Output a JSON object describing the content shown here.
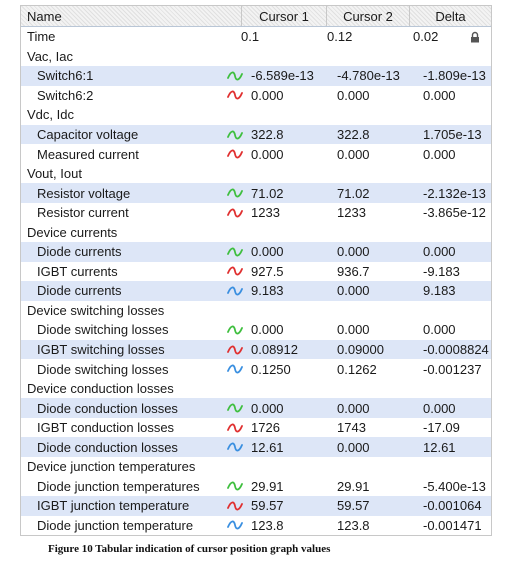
{
  "header": {
    "name": "Name",
    "cursor1": "Cursor 1",
    "cursor2": "Cursor 2",
    "delta": "Delta"
  },
  "colors": {
    "green": "#3fbf3f",
    "red": "#e03030",
    "blue": "#3a8fe0",
    "alt_row": "#dde6f7"
  },
  "rows": [
    {
      "type": "value",
      "name": "Time",
      "c1": "0.1",
      "c2": "0.12",
      "d": "0.02",
      "lock": true
    },
    {
      "type": "group",
      "name": "Vac, Iac"
    },
    {
      "type": "signal",
      "name": "Switch6:1",
      "icon": "green",
      "c1": "-6.589e-13",
      "c2": "-4.780e-13",
      "d": "-1.809e-13"
    },
    {
      "type": "signal",
      "name": "Switch6:2",
      "icon": "red",
      "c1": "0.000",
      "c2": "0.000",
      "d": "0.000"
    },
    {
      "type": "group",
      "name": "Vdc, Idc"
    },
    {
      "type": "signal",
      "name": "Capacitor voltage",
      "icon": "green",
      "c1": "322.8",
      "c2": "322.8",
      "d": "1.705e-13"
    },
    {
      "type": "signal",
      "name": "Measured current",
      "icon": "red",
      "c1": "0.000",
      "c2": "0.000",
      "d": "0.000"
    },
    {
      "type": "group",
      "name": "Vout, Iout"
    },
    {
      "type": "signal",
      "name": "Resistor voltage",
      "icon": "green",
      "c1": "71.02",
      "c2": "71.02",
      "d": "-2.132e-13"
    },
    {
      "type": "signal",
      "name": "Resistor current",
      "icon": "red",
      "c1": "1233",
      "c2": "1233",
      "d": "-3.865e-12"
    },
    {
      "type": "group",
      "name": "Device currents"
    },
    {
      "type": "signal",
      "name": "Diode currents",
      "icon": "green",
      "c1": "0.000",
      "c2": "0.000",
      "d": "0.000"
    },
    {
      "type": "signal",
      "name": "IGBT currents",
      "icon": "red",
      "c1": "927.5",
      "c2": "936.7",
      "d": "-9.183"
    },
    {
      "type": "signal",
      "name": "Diode currents",
      "icon": "blue",
      "c1": "9.183",
      "c2": "0.000",
      "d": "9.183"
    },
    {
      "type": "group",
      "name": "Device switching losses"
    },
    {
      "type": "signal",
      "name": "Diode switching losses",
      "icon": "green",
      "c1": "0.000",
      "c2": "0.000",
      "d": "0.000"
    },
    {
      "type": "signal",
      "name": "IGBT switching losses",
      "icon": "red",
      "c1": "0.08912",
      "c2": "0.09000",
      "d": "-0.0008824"
    },
    {
      "type": "signal",
      "name": "Diode switching losses",
      "icon": "blue",
      "c1": "0.1250",
      "c2": "0.1262",
      "d": "-0.001237"
    },
    {
      "type": "group",
      "name": "Device conduction losses"
    },
    {
      "type": "signal",
      "name": "Diode conduction losses",
      "icon": "green",
      "c1": "0.000",
      "c2": "0.000",
      "d": "0.000"
    },
    {
      "type": "signal",
      "name": "IGBT conduction losses",
      "icon": "red",
      "c1": "1726",
      "c2": "1743",
      "d": "-17.09"
    },
    {
      "type": "signal",
      "name": "Diode conduction losses",
      "icon": "blue",
      "c1": "12.61",
      "c2": "0.000",
      "d": "12.61"
    },
    {
      "type": "group",
      "name": "Device junction temperatures"
    },
    {
      "type": "signal",
      "name": "Diode junction temperatures",
      "icon": "green",
      "c1": "29.91",
      "c2": "29.91",
      "d": "-5.400e-13"
    },
    {
      "type": "signal",
      "name": "IGBT junction temperature",
      "icon": "red",
      "c1": "59.57",
      "c2": "59.57",
      "d": "-0.001064"
    },
    {
      "type": "signal",
      "name": "Diode junction temperature",
      "icon": "blue",
      "c1": "123.8",
      "c2": "123.8",
      "d": "-0.001471"
    }
  ],
  "caption": "Figure 10 Tabular indication of cursor position graph values"
}
